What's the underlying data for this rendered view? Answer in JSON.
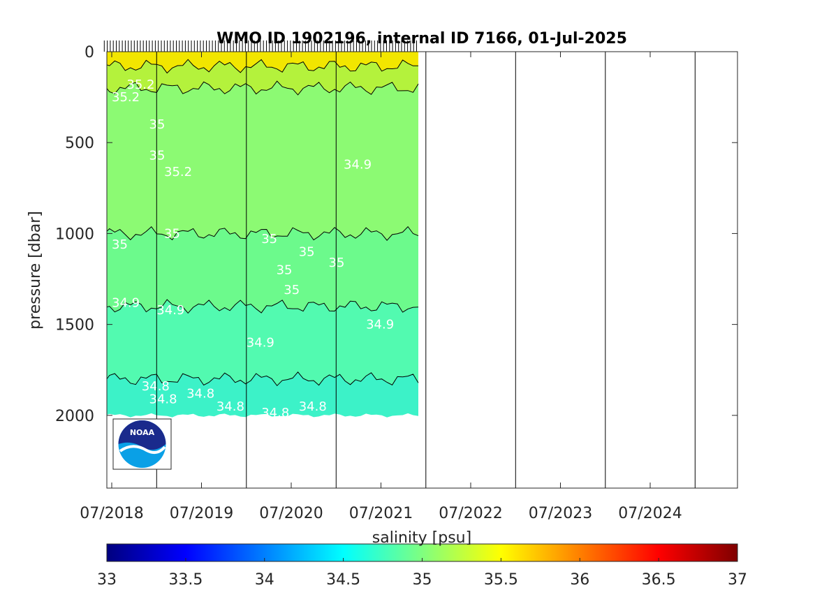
{
  "chart_data": {
    "type": "heatmap",
    "title": "WMO ID 1902196, internal ID 7166, 01-Jul-2025",
    "xlabel": "",
    "ylabel": "pressure [dbar]",
    "x_ticks": [
      "07/2018",
      "07/2019",
      "07/2020",
      "07/2021",
      "07/2022",
      "07/2023",
      "07/2024"
    ],
    "y_ticks": [
      "0",
      "500",
      "1000",
      "1500",
      "2000"
    ],
    "ylim": [
      0,
      2400
    ],
    "y_reversed": true,
    "data_x_range": [
      "06/2018",
      "12/2021"
    ],
    "year_boundaries": [
      "01/2019",
      "01/2020",
      "01/2021",
      "01/2022",
      "01/2023",
      "01/2024",
      "01/2025"
    ],
    "layers": [
      {
        "salinity_range": "> 35.3",
        "pressure_top": 0,
        "pressure_bottom": 80,
        "color": "#f2e600"
      },
      {
        "salinity_range": "35.2 - 35.3",
        "pressure_top": 80,
        "pressure_bottom": 200,
        "color": "#b4f23c"
      },
      {
        "salinity_range": "35.0 - 35.2",
        "pressure_top": 200,
        "pressure_bottom": 1000,
        "color": "#8cfa73"
      },
      {
        "salinity_range": "34.9 - 35.0",
        "pressure_top": 1000,
        "pressure_bottom": 1400,
        "color": "#6cfa8c"
      },
      {
        "salinity_range": "34.8 - 34.9",
        "pressure_top": 1400,
        "pressure_bottom": 1800,
        "color": "#52fab0"
      },
      {
        "salinity_range": "< 34.8",
        "pressure_top": 1800,
        "pressure_bottom": 2000,
        "color": "#3cf2c8"
      }
    ],
    "contour_labels": [
      {
        "text": "35.2",
        "date": "07/2018",
        "pressure": 250
      },
      {
        "text": "35.2",
        "date": "09/2018",
        "pressure": 180
      },
      {
        "text": "35",
        "date": "12/2018",
        "pressure": 400
      },
      {
        "text": "35",
        "date": "12/2018",
        "pressure": 570
      },
      {
        "text": "35.2",
        "date": "02/2019",
        "pressure": 660
      },
      {
        "text": "34.9",
        "date": "02/2021",
        "pressure": 620
      },
      {
        "text": "35",
        "date": "07/2018",
        "pressure": 1060
      },
      {
        "text": "35",
        "date": "02/2019",
        "pressure": 1000
      },
      {
        "text": "35",
        "date": "03/2020",
        "pressure": 1030
      },
      {
        "text": "35",
        "date": "05/2020",
        "pressure": 1200
      },
      {
        "text": "35",
        "date": "08/2020",
        "pressure": 1100
      },
      {
        "text": "35",
        "date": "12/2020",
        "pressure": 1160
      },
      {
        "text": "35",
        "date": "06/2020",
        "pressure": 1310
      },
      {
        "text": "34.9",
        "date": "07/2018",
        "pressure": 1380
      },
      {
        "text": "34.9",
        "date": "01/2019",
        "pressure": 1420
      },
      {
        "text": "34.9",
        "date": "01/2020",
        "pressure": 1600
      },
      {
        "text": "34.9",
        "date": "05/2021",
        "pressure": 1500
      },
      {
        "text": "34.8",
        "date": "11/2018",
        "pressure": 1840
      },
      {
        "text": "34.8",
        "date": "12/2018",
        "pressure": 1910
      },
      {
        "text": "34.8",
        "date": "05/2019",
        "pressure": 1880
      },
      {
        "text": "34.8",
        "date": "09/2019",
        "pressure": 1950
      },
      {
        "text": "34.8",
        "date": "03/2020",
        "pressure": 1985
      },
      {
        "text": "34.8",
        "date": "08/2020",
        "pressure": 1950
      }
    ],
    "colorbar": {
      "label": "salinity [psu]",
      "ticks": [
        "33",
        "33.5",
        "34",
        "34.5",
        "35",
        "35.5",
        "36",
        "36.5",
        "37"
      ],
      "range": [
        33,
        37
      ],
      "colormap": "jet"
    },
    "logo": "NOAA"
  }
}
